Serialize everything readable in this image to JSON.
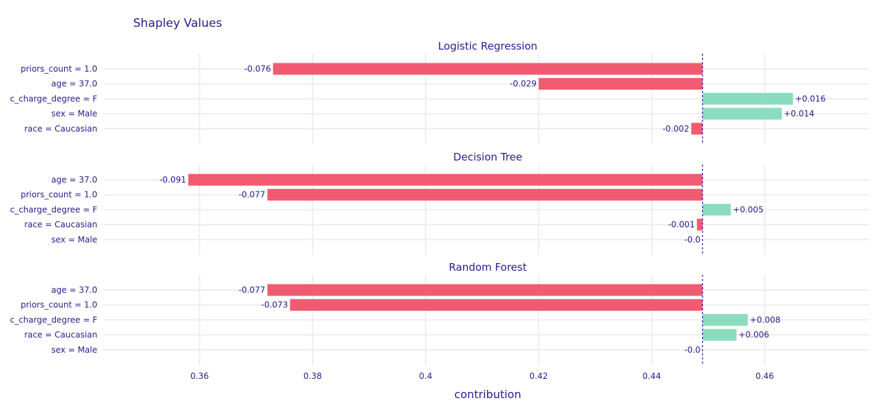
{
  "chart_data": {
    "type": "bar",
    "title": "Shapley Values",
    "xlabel": "contribution",
    "xlim": [
      0.343,
      0.4785
    ],
    "x_ticks": [
      "0.36",
      "0.38",
      "0.4",
      "0.42",
      "0.44",
      "0.46"
    ],
    "x_tick_values": [
      0.36,
      0.38,
      0.4,
      0.42,
      0.44,
      0.46
    ],
    "baseline": 0.449,
    "grid": true,
    "colors": {
      "negative": "#f05b72",
      "positive": "#8bdcbe",
      "text": "#2a1a8c",
      "baseline": "#371ea3",
      "grid": "#eeeeee"
    },
    "panels": [
      {
        "name": "Logistic Regression",
        "bars": [
          {
            "variable": "priors_count = 1.0",
            "value": -0.076,
            "label": "-0.076"
          },
          {
            "variable": "age = 37.0",
            "value": -0.029,
            "label": "-0.029"
          },
          {
            "variable": "c_charge_degree = F",
            "value": 0.016,
            "label": "+0.016"
          },
          {
            "variable": "sex = Male",
            "value": 0.014,
            "label": "+0.014"
          },
          {
            "variable": "race = Caucasian",
            "value": -0.002,
            "label": "-0.002"
          }
        ]
      },
      {
        "name": "Decision Tree",
        "bars": [
          {
            "variable": "age = 37.0",
            "value": -0.091,
            "label": "-0.091"
          },
          {
            "variable": "priors_count = 1.0",
            "value": -0.077,
            "label": "-0.077"
          },
          {
            "variable": "c_charge_degree = F",
            "value": 0.005,
            "label": "+0.005"
          },
          {
            "variable": "race = Caucasian",
            "value": -0.001,
            "label": "-0.001"
          },
          {
            "variable": "sex = Male",
            "value": 0.0,
            "label": "-0.0"
          }
        ]
      },
      {
        "name": "Random Forest",
        "bars": [
          {
            "variable": "age = 37.0",
            "value": -0.077,
            "label": "-0.077"
          },
          {
            "variable": "priors_count = 1.0",
            "value": -0.073,
            "label": "-0.073"
          },
          {
            "variable": "c_charge_degree = F",
            "value": 0.008,
            "label": "+0.008"
          },
          {
            "variable": "race = Caucasian",
            "value": 0.006,
            "label": "+0.006"
          },
          {
            "variable": "sex = Male",
            "value": 0.0,
            "label": "-0.0"
          }
        ]
      }
    ]
  }
}
